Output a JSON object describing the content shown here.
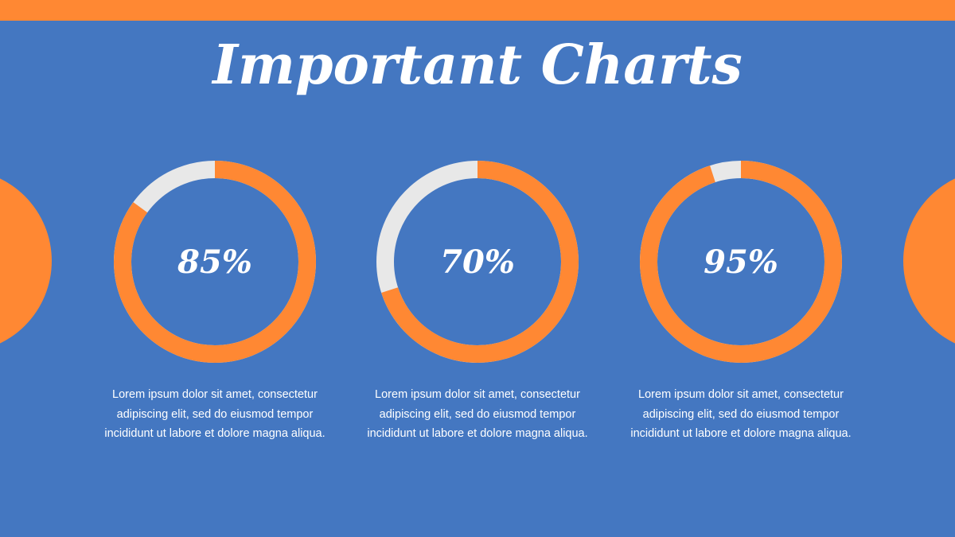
{
  "title": "Important Charts",
  "colors": {
    "background": "#4477c1",
    "accent": "#ff8833",
    "track": "#e8e8e8",
    "text": "#ffffff"
  },
  "chart_data": [
    {
      "type": "donut",
      "value": 85,
      "label": "85%",
      "max": 100
    },
    {
      "type": "donut",
      "value": 70,
      "label": "70%",
      "max": 100
    },
    {
      "type": "donut",
      "value": 95,
      "label": "95%",
      "max": 100
    }
  ],
  "descriptions": [
    "Lorem ipsum dolor sit amet, consectetur adipiscing elit, sed do eiusmod tempor incididunt ut labore et dolore magna aliqua.",
    "Lorem ipsum dolor sit amet, consectetur adipiscing elit, sed do eiusmod tempor incididunt ut labore et dolore magna aliqua.",
    "Lorem ipsum dolor sit amet, consectetur adipiscing elit, sed do eiusmod tempor incididunt ut labore et dolore magna aliqua."
  ]
}
